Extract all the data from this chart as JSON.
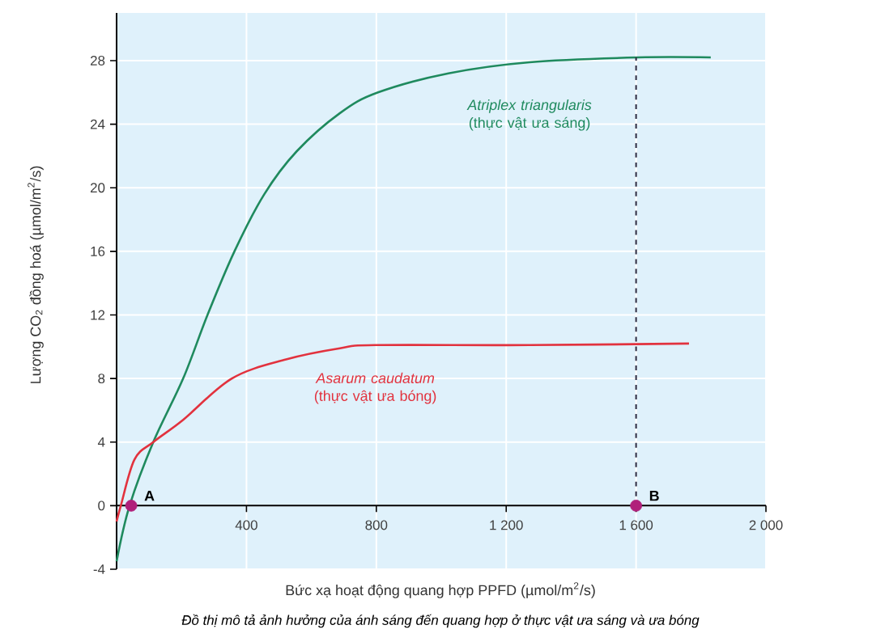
{
  "chart_data": {
    "type": "line",
    "xlabel": "Bức xạ hoạt động quang hợp PPFD (µmol/m$^{2}$/s)",
    "ylabel": "Lượng CO$_{2}$ đồng hoá (µmol/m$^{2}$/s)",
    "xlim": [
      0,
      2000
    ],
    "ylim": [
      -4,
      31
    ],
    "xticks": [
      400,
      800,
      {
        "value": 1200,
        "label": "1 200"
      },
      {
        "value": 1600,
        "label": "1 600"
      },
      {
        "value": 2000,
        "label": "2 000"
      }
    ],
    "yticks": [
      -4,
      0,
      4,
      8,
      12,
      16,
      20,
      24,
      28
    ],
    "grid": true,
    "series": [
      {
        "name": "*Atriplex triangularis* (thực vật ưa sáng)",
        "color": "#1f8a5e",
        "x": [
          0,
          40,
          113,
          205,
          280,
          363,
          455,
          555,
          688,
          805,
          1022,
          1272,
          1605,
          1830
        ],
        "values": [
          -3.5,
          0,
          4,
          8,
          12,
          16,
          19.6,
          22.3,
          24.7,
          26,
          27.2,
          27.9,
          28.2,
          28.2
        ]
      },
      {
        "name": "*Asarum caudatum* (thực vật ưa bóng)",
        "color": "#e2323e",
        "x": [
          0,
          13,
          55,
          113,
          205,
          355,
          522,
          688,
          797,
          1272,
          1763
        ],
        "values": [
          -1,
          0,
          2.9,
          4,
          5.4,
          8,
          9.2,
          9.9,
          10.1,
          10.1,
          10.2
        ]
      },
      {
        "line_style": "dashed",
        "color": "#2a2a40",
        "x": [
          1600,
          1600
        ],
        "values": [
          0,
          28.2
        ]
      },
      {
        "type": "scatter",
        "marker": "circle",
        "color": "#b0207a",
        "x": [
          45,
          1600
        ],
        "values": [
          0,
          0
        ]
      }
    ],
    "annotations": [
      {
        "text": "A",
        "x": 45,
        "y": 0
      },
      {
        "text": "B",
        "x": 1600,
        "y": 0
      },
      "Đồ thị mô tả ảnh hưởng của ánh sáng đến quang hợp ở thực vật ưa sáng và ưa bóng"
    ]
  }
}
